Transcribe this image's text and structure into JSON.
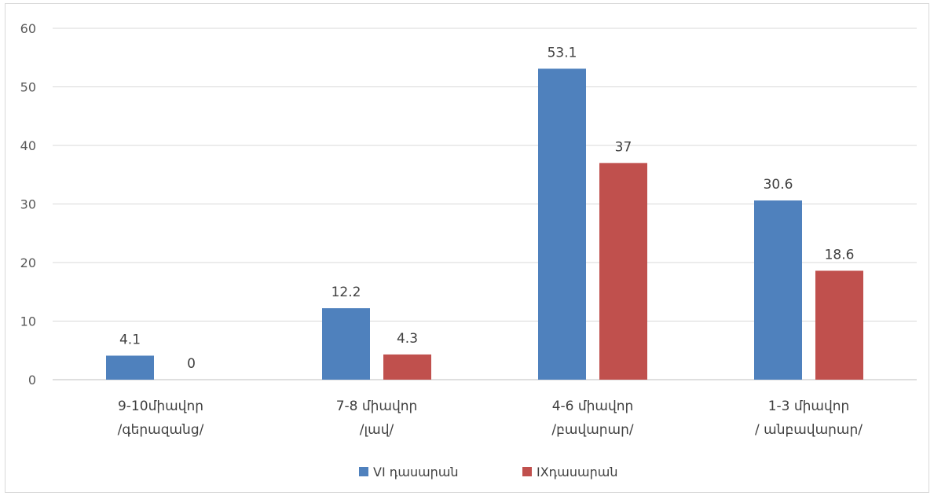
{
  "chart_data": {
    "type": "bar",
    "categories": [
      [
        "9-10միավոր",
        "/գերազանց/"
      ],
      [
        "7-8 միավոր",
        "/լավ/"
      ],
      [
        "4-6 միավոր",
        "/բավարար/"
      ],
      [
        "1-3 միավոր",
        "/ անբավարար/"
      ]
    ],
    "series": [
      {
        "name": "VI  դասարան",
        "color": "#4f81bd",
        "values": [
          4.1,
          12.2,
          53.1,
          30.6
        ],
        "labels": [
          "4.1",
          "12.2",
          "53.1",
          "30.6"
        ]
      },
      {
        "name": "IXդասարան",
        "color": "#c0504d",
        "values": [
          0,
          4.3,
          37,
          18.6
        ],
        "labels": [
          "0",
          "4.3",
          "37",
          "18.6"
        ]
      }
    ],
    "ylim": [
      0,
      60
    ],
    "yticks": [
      "0",
      "10",
      "20",
      "30",
      "40",
      "50",
      "60"
    ],
    "grid": true,
    "legend_position": "bottom"
  }
}
